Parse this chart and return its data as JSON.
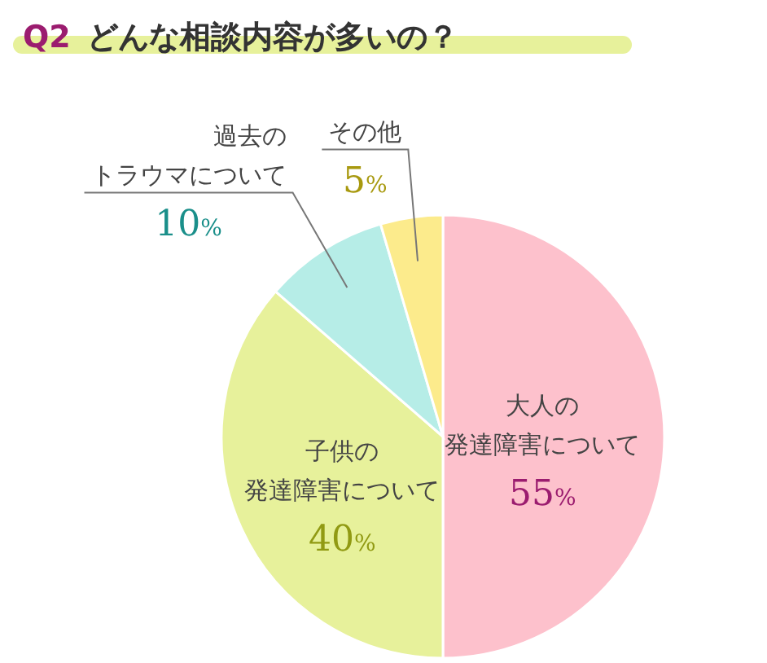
{
  "chart_data": {
    "type": "pie",
    "title": "Q2 どんな相談内容が多いの？",
    "categories": [
      "大人の発達障害について",
      "子供の発達障害について",
      "過去のトラウマについて",
      "その他"
    ],
    "values": [
      55,
      40,
      10,
      5
    ],
    "value_labels": [
      "55%",
      "40%",
      "10%",
      "5%"
    ],
    "colors": [
      "#fdc1cc",
      "#e7f19b",
      "#b6ede7",
      "#fceb8c"
    ]
  }
}
